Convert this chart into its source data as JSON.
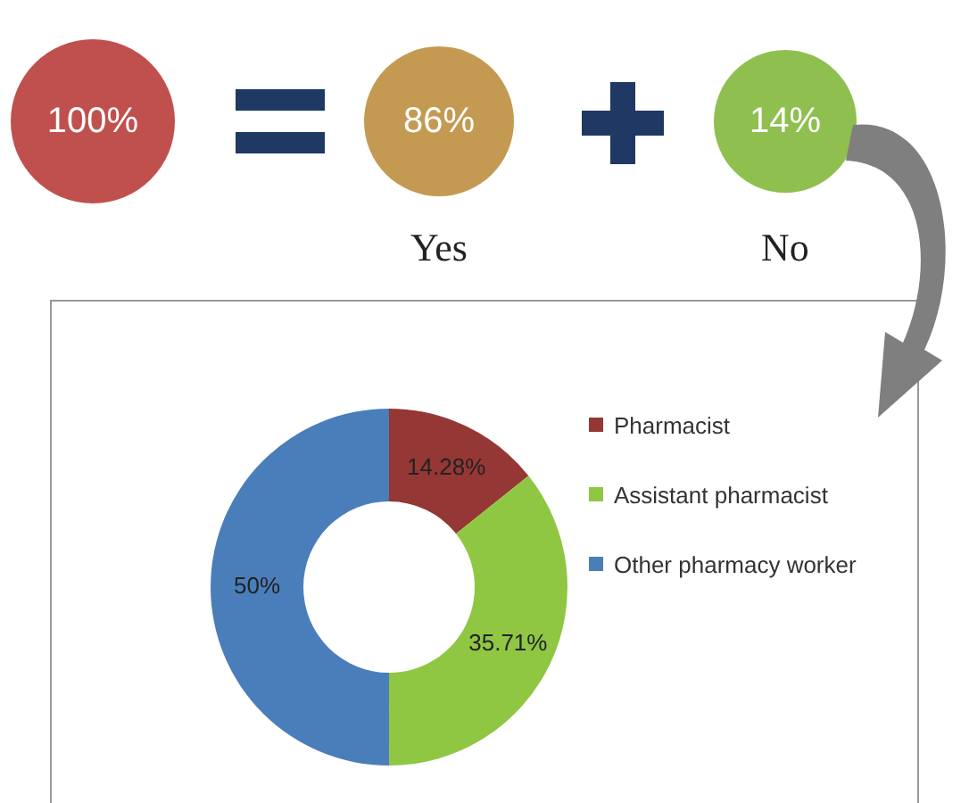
{
  "chart_data": [
    {
      "type": "other",
      "categories": [
        null,
        "Yes",
        "No"
      ],
      "values": [
        100,
        86,
        14
      ],
      "value_labels": [
        "100%",
        "86%",
        "14%"
      ],
      "colors": [
        "#c0504d",
        "#c49a52",
        "#8fbf4f"
      ]
    },
    {
      "type": "donut",
      "categories": [
        "Pharmacist",
        "Assistant pharmacist",
        "Other pharmacy worker"
      ],
      "values": [
        14.28,
        35.71,
        50
      ],
      "value_labels": [
        "14.28%",
        "35.71%",
        "50%"
      ],
      "colors": [
        "#953735",
        "#8fc743",
        "#4a7ebb"
      ],
      "legend": "right"
    }
  ]
}
